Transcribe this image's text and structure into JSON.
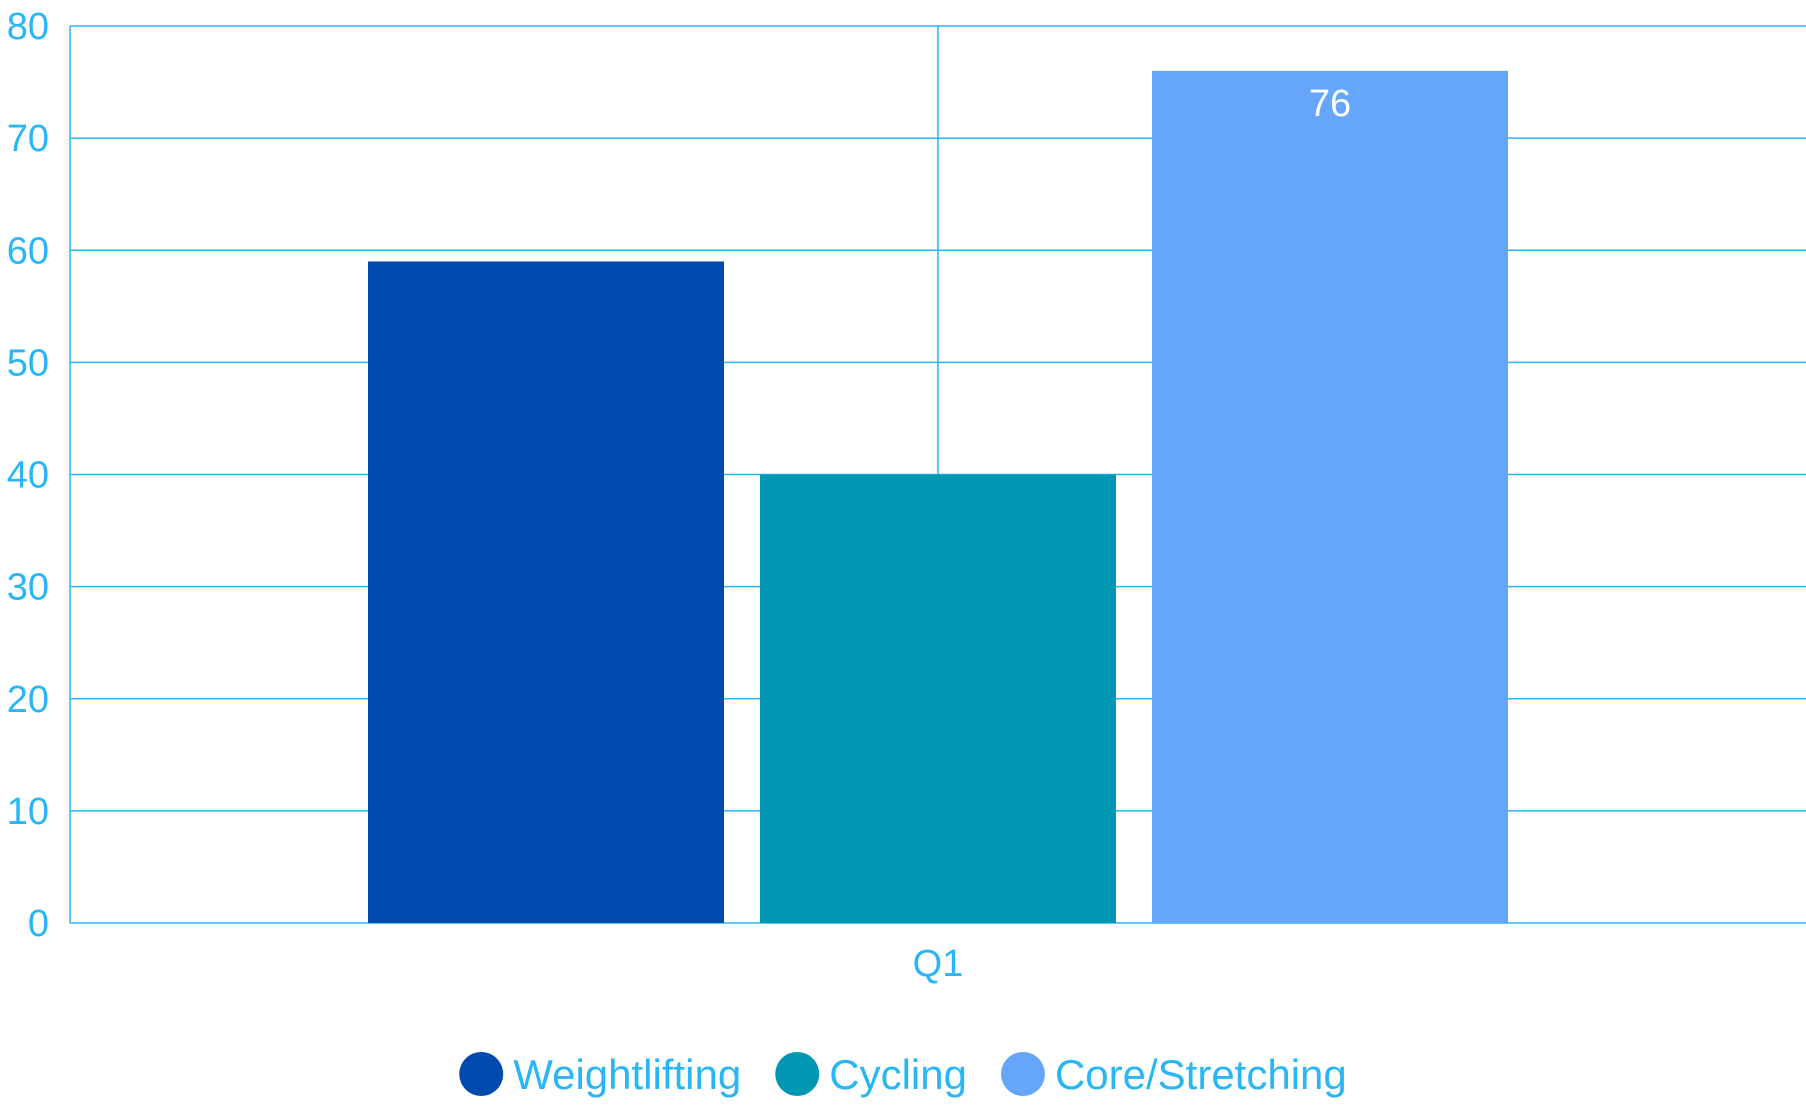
{
  "colors": {
    "axis_text": "#29B6F6",
    "grid": "#29B6F6",
    "data_label": "#FFFFFF",
    "background": "#FFFFFF"
  },
  "chart_data": {
    "type": "bar",
    "title": "",
    "xlabel": "",
    "ylabel": "",
    "categories": [
      "Q1"
    ],
    "ylim": [
      0,
      80
    ],
    "yticks": [
      0,
      10,
      20,
      30,
      40,
      50,
      60,
      70,
      80
    ],
    "grid": true,
    "legend_position": "bottom-center",
    "series": [
      {
        "name": "Weightlifting",
        "values": [
          59
        ],
        "color": "#004AAD",
        "label": ""
      },
      {
        "name": "Cycling",
        "values": [
          40
        ],
        "color": "#0097B2",
        "label": ""
      },
      {
        "name": "Core/Stretching",
        "values": [
          76
        ],
        "color": "#66A6FA",
        "label": "76"
      }
    ]
  }
}
